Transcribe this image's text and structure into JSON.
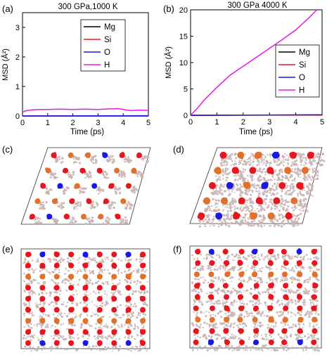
{
  "chart_data": [
    {
      "type": "line",
      "panel_label": "(a)",
      "title": "300 GPa,1000 K",
      "xlabel": "Time (ps)",
      "ylabel": "MSD (Å²)",
      "xlim": [
        0,
        5
      ],
      "ylim": [
        0,
        3.5
      ],
      "xticks": [
        0,
        1,
        2,
        3,
        4,
        5
      ],
      "yticks": [
        0,
        1,
        2,
        3
      ],
      "legend_position": "top-right",
      "grid": false,
      "series": [
        {
          "name": "Mg",
          "color": "#000000",
          "x": [
            0,
            5
          ],
          "y": [
            0,
            0
          ]
        },
        {
          "name": "Si",
          "color": "#e8161d",
          "x": [
            0,
            5
          ],
          "y": [
            0,
            0
          ]
        },
        {
          "name": "O",
          "color": "#1a1ae6",
          "x": [
            0,
            5
          ],
          "y": [
            0,
            0.01
          ]
        },
        {
          "name": "H",
          "color": "#e61ae6",
          "x": [
            0,
            0.1,
            0.3,
            0.6,
            1.0,
            1.5,
            2.0,
            2.5,
            3.0,
            3.5,
            3.8,
            4.0,
            4.3,
            4.6,
            5.0
          ],
          "y": [
            0.12,
            0.17,
            0.2,
            0.22,
            0.22,
            0.23,
            0.22,
            0.23,
            0.22,
            0.24,
            0.25,
            0.22,
            0.18,
            0.2,
            0.19
          ]
        }
      ]
    },
    {
      "type": "line",
      "panel_label": "(b)",
      "title": "300 GPa 4000 K",
      "xlabel": "Time (ps)",
      "ylabel": "MSD (Å²)",
      "xlim": [
        0,
        5
      ],
      "ylim": [
        0,
        20
      ],
      "xticks": [
        0,
        1,
        2,
        3,
        4,
        5
      ],
      "yticks": [
        0,
        5,
        10,
        15,
        20
      ],
      "legend_position": "bottom-right",
      "grid": false,
      "series": [
        {
          "name": "Mg",
          "color": "#000000",
          "x": [
            0,
            5
          ],
          "y": [
            0,
            0.05
          ]
        },
        {
          "name": "Si",
          "color": "#e8161d",
          "x": [
            0,
            5
          ],
          "y": [
            0,
            0.05
          ]
        },
        {
          "name": "O",
          "color": "#1a1ae6",
          "x": [
            0,
            5
          ],
          "y": [
            0,
            0.1
          ]
        },
        {
          "name": "H",
          "color": "#e61ae6",
          "x": [
            0,
            0.25,
            0.5,
            1.0,
            1.5,
            2.0,
            2.5,
            3.0,
            3.5,
            4.0,
            4.5,
            4.8
          ],
          "y": [
            0,
            1.3,
            2.8,
            5.3,
            7.6,
            9.3,
            11.0,
            12.7,
            14.4,
            16.2,
            18.5,
            20.0
          ]
        }
      ]
    }
  ],
  "snapshots": [
    {
      "label": "(c)",
      "view": "top",
      "shape": "rhombus"
    },
    {
      "label": "(d)",
      "view": "top",
      "shape": "rhombus"
    },
    {
      "label": "(e)",
      "view": "side",
      "shape": "rectangle"
    },
    {
      "label": "(f)",
      "view": "side",
      "shape": "rectangle"
    }
  ],
  "atom_colors": {
    "Mg": "#e0702a",
    "Si": "#e8161d",
    "O": "#1a1ae6",
    "H": "#c9b3b3"
  }
}
